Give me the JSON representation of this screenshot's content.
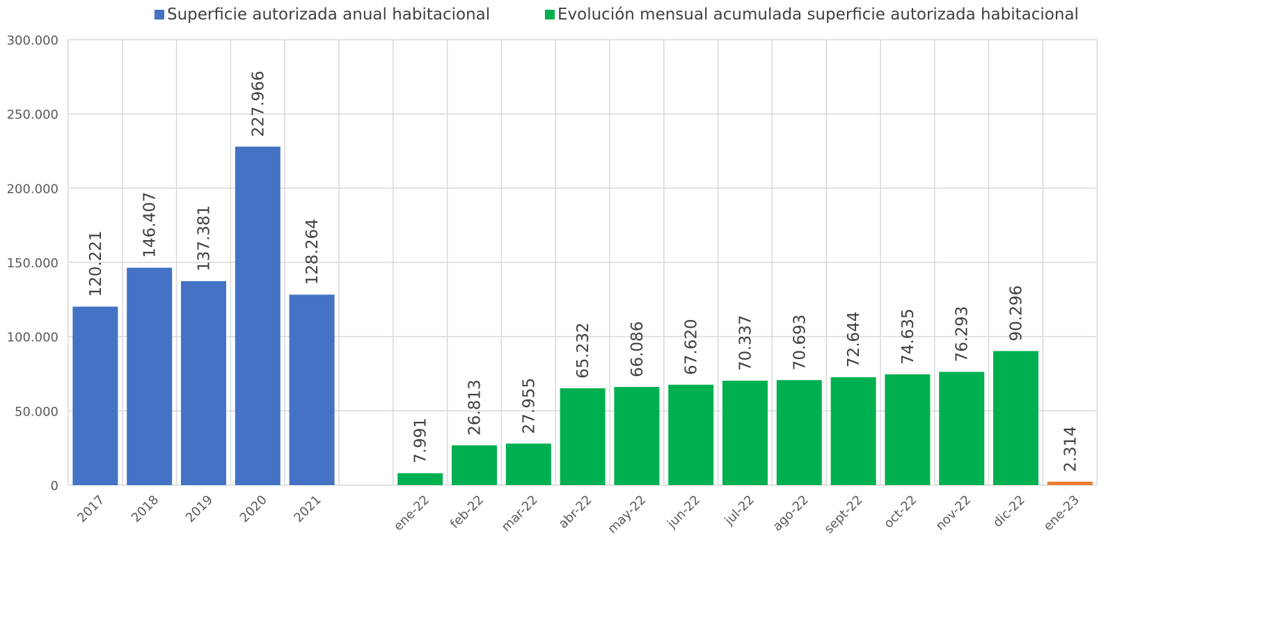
{
  "chart_data": {
    "type": "bar",
    "categories": [
      "2017",
      "2018",
      "2019",
      "2020",
      "2021",
      "",
      "ene-22",
      "feb-22",
      "mar-22",
      "abr-22",
      "may-22",
      "jun-22",
      "jul-22",
      "ago-22",
      "sept-22",
      "oct-22",
      "nov-22",
      "dic-22",
      "ene-23"
    ],
    "series": [
      {
        "name": "Superficie autorizada anual habitacional",
        "color": "#4472C4",
        "values": [
          120221,
          146407,
          137381,
          227966,
          128264,
          null,
          null,
          null,
          null,
          null,
          null,
          null,
          null,
          null,
          null,
          null,
          null,
          null,
          null
        ],
        "labels": [
          "120.221",
          "146.407",
          "137.381",
          "227.966",
          "128.264",
          null,
          null,
          null,
          null,
          null,
          null,
          null,
          null,
          null,
          null,
          null,
          null,
          null,
          null
        ]
      },
      {
        "name": "Evolución mensual acumulada superficie autorizada habitacional",
        "color": "#00B050",
        "values": [
          null,
          null,
          null,
          null,
          null,
          null,
          7991,
          26813,
          27955,
          65232,
          66086,
          67620,
          70337,
          70693,
          72644,
          74635,
          76293,
          90296,
          null
        ],
        "labels": [
          null,
          null,
          null,
          null,
          null,
          null,
          "7.991",
          "26.813",
          "27.955",
          "65.232",
          "66.086",
          "67.620",
          "70.337",
          "70.693",
          "72.644",
          "74.635",
          "76.293",
          "90.296",
          null
        ]
      },
      {
        "color": "#ED7D31",
        "values": [
          null,
          null,
          null,
          null,
          null,
          null,
          null,
          null,
          null,
          null,
          null,
          null,
          null,
          null,
          null,
          null,
          null,
          null,
          2314
        ],
        "labels": [
          null,
          null,
          null,
          null,
          null,
          null,
          null,
          null,
          null,
          null,
          null,
          null,
          null,
          null,
          null,
          null,
          null,
          null,
          "2.314"
        ]
      }
    ],
    "yticks": [
      "0",
      "50.000",
      "100.000",
      "150.000",
      "200.000",
      "250.000",
      "300.000"
    ],
    "ylim": [
      0,
      300000
    ],
    "grid": true,
    "legend": "top-center"
  }
}
